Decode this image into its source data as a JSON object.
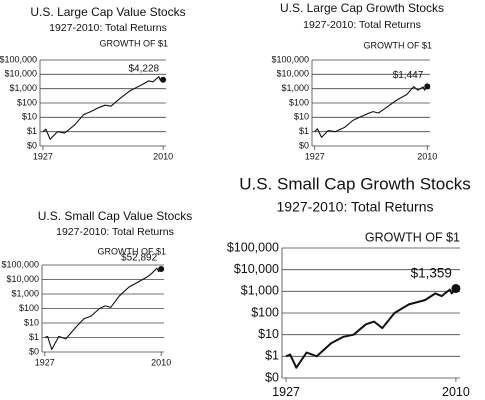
{
  "chart_data": [
    {
      "type": "line",
      "title": "U.S. Large Cap Value Stocks",
      "subtitle": "1927-2010: Total Returns",
      "annotation": "GROWTH OF $1",
      "log": true,
      "color": "#111",
      "x": [
        1927,
        1929,
        1932,
        1937,
        1942,
        1949,
        1955,
        1960,
        1966,
        1970,
        1974,
        1980,
        1987,
        1995,
        2000,
        2003,
        2007,
        2008,
        2010
      ],
      "values": [
        1,
        1.5,
        0.3,
        1,
        0.8,
        3,
        15,
        25,
        50,
        70,
        60,
        200,
        700,
        1800,
        3500,
        3000,
        7000,
        4000,
        4228
      ],
      "value_labels": [
        null,
        null,
        null,
        null,
        null,
        null,
        null,
        null,
        null,
        null,
        null,
        null,
        null,
        null,
        null,
        null,
        null,
        null,
        "$4,228"
      ],
      "xlim": [
        1925,
        2012
      ],
      "xticks": [
        1927,
        2010
      ],
      "ylim": [
        0.1,
        100000
      ],
      "yticks": [
        {
          "value": 0.1,
          "label": "$0"
        },
        {
          "value": 1,
          "label": "$1"
        },
        {
          "value": 10,
          "label": "$10"
        },
        {
          "value": 100,
          "label": "$100"
        },
        {
          "value": 1000,
          "label": "$1,000"
        },
        {
          "value": 10000,
          "label": "$10,000"
        },
        {
          "value": 100000,
          "label": "$100,000"
        }
      ],
      "grid": true
    },
    {
      "type": "line",
      "title": "U.S. Large Cap Growth Stocks",
      "subtitle": "1927-2010: Total Returns",
      "annotation": "GROWTH OF $1",
      "log": true,
      "color": "#111",
      "x": [
        1927,
        1929,
        1932,
        1937,
        1942,
        1949,
        1955,
        1960,
        1966,
        1970,
        1974,
        1980,
        1987,
        1995,
        2000,
        2003,
        2007,
        2008,
        2010
      ],
      "values": [
        1,
        1.6,
        0.4,
        1.2,
        1,
        2,
        6,
        10,
        18,
        25,
        20,
        50,
        150,
        400,
        1400,
        800,
        1300,
        800,
        1447
      ],
      "value_labels": [
        null,
        null,
        null,
        null,
        null,
        null,
        null,
        null,
        null,
        null,
        null,
        null,
        null,
        null,
        null,
        null,
        null,
        null,
        "$1,447"
      ],
      "xlim": [
        1925,
        2012
      ],
      "xticks": [
        1927,
        2010
      ],
      "ylim": [
        0.1,
        100000
      ],
      "yticks": [
        {
          "value": 0.1,
          "label": "$0"
        },
        {
          "value": 1,
          "label": "$1"
        },
        {
          "value": 10,
          "label": "$10"
        },
        {
          "value": 100,
          "label": "$100"
        },
        {
          "value": 1000,
          "label": "$1,000"
        },
        {
          "value": 10000,
          "label": "$10,000"
        },
        {
          "value": 100000,
          "label": "$100,000"
        }
      ],
      "grid": true
    },
    {
      "type": "line",
      "title": "U.S. Small Cap Value Stocks",
      "subtitle": "1927-2010: Total Returns",
      "annotation": "GROWTH OF $1",
      "log": true,
      "color": "#111",
      "x": [
        1927,
        1929,
        1932,
        1937,
        1942,
        1949,
        1955,
        1960,
        1966,
        1970,
        1974,
        1980,
        1987,
        1995,
        2000,
        2003,
        2007,
        2008,
        2010
      ],
      "values": [
        1,
        1.2,
        0.15,
        1.2,
        0.8,
        5,
        20,
        30,
        100,
        150,
        120,
        700,
        3000,
        8000,
        15000,
        25000,
        60000,
        35000,
        52892
      ],
      "value_labels": [
        null,
        null,
        null,
        null,
        null,
        null,
        null,
        null,
        null,
        null,
        null,
        null,
        null,
        null,
        null,
        null,
        null,
        null,
        "$52,892"
      ],
      "xlim": [
        1925,
        2012
      ],
      "xticks": [
        1927,
        2010
      ],
      "ylim": [
        0.1,
        100000
      ],
      "yticks": [
        {
          "value": 0.1,
          "label": "$0"
        },
        {
          "value": 1,
          "label": "$1"
        },
        {
          "value": 10,
          "label": "$10"
        },
        {
          "value": 100,
          "label": "$100"
        },
        {
          "value": 1000,
          "label": "$1,000"
        },
        {
          "value": 10000,
          "label": "$10,000"
        },
        {
          "value": 100000,
          "label": "$100,000"
        }
      ],
      "grid": true
    },
    {
      "type": "line",
      "title": "U.S. Small Cap Growth Stocks",
      "subtitle": "1927-2010: Total Returns",
      "annotation": "GROWTH OF $1",
      "log": true,
      "color": "#111",
      "x": [
        1927,
        1929,
        1932,
        1937,
        1942,
        1949,
        1955,
        1960,
        1966,
        1970,
        1974,
        1980,
        1987,
        1995,
        2000,
        2003,
        2007,
        2008,
        2010
      ],
      "values": [
        1,
        1.2,
        0.3,
        1.5,
        1,
        4,
        8,
        10,
        30,
        40,
        20,
        100,
        250,
        400,
        800,
        600,
        1200,
        800,
        1359
      ],
      "value_labels": [
        null,
        null,
        null,
        null,
        null,
        null,
        null,
        null,
        null,
        null,
        null,
        null,
        null,
        null,
        null,
        null,
        null,
        null,
        "$1,359"
      ],
      "xlim": [
        1925,
        2012
      ],
      "xticks": [
        1927,
        2010
      ],
      "ylim": [
        0.1,
        100000
      ],
      "yticks": [
        {
          "value": 0.1,
          "label": "$0"
        },
        {
          "value": 1,
          "label": "$1"
        },
        {
          "value": 10,
          "label": "$10"
        },
        {
          "value": 100,
          "label": "$100"
        },
        {
          "value": 1000,
          "label": "$1,000"
        },
        {
          "value": 10000,
          "label": "$10,000"
        },
        {
          "value": 100000,
          "label": "$100,000"
        }
      ],
      "grid": true
    }
  ]
}
